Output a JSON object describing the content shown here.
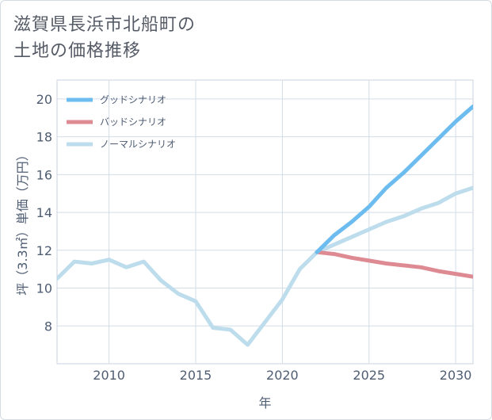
{
  "page": {
    "title_line1": "滋賀県長浜市北船町の",
    "title_line2": "土地の価格推移"
  },
  "chart_data": {
    "type": "line",
    "title": "滋賀県長浜市北船町の土地の価格推移",
    "xlabel": "年",
    "ylabel": "坪（3.3㎡）単価（万円）",
    "xlim": [
      2007,
      2031
    ],
    "ylim": [
      6,
      21
    ],
    "x_ticks": [
      2010,
      2015,
      2020,
      2025,
      2030
    ],
    "y_ticks": [
      8,
      10,
      12,
      14,
      16,
      18,
      20
    ],
    "grid": true,
    "legend_position": "top-left",
    "series": [
      {
        "name": "グッドシナリオ",
        "color": "#6cbcf0",
        "x": [
          2022,
          2023,
          2024,
          2025,
          2026,
          2027,
          2028,
          2029,
          2030,
          2031
        ],
        "values": [
          11.9,
          12.8,
          13.5,
          14.3,
          15.3,
          16.1,
          17.0,
          17.9,
          18.8,
          19.6
        ]
      },
      {
        "name": "バッドシナリオ",
        "color": "#de8a92",
        "x": [
          2022,
          2023,
          2024,
          2025,
          2026,
          2027,
          2028,
          2029,
          2030,
          2031
        ],
        "values": [
          11.9,
          11.8,
          11.6,
          11.45,
          11.3,
          11.2,
          11.1,
          10.9,
          10.75,
          10.6
        ]
      },
      {
        "name": "ノーマルシナリオ",
        "color": "#bddcec",
        "x": [
          2007,
          2008,
          2009,
          2010,
          2011,
          2012,
          2013,
          2014,
          2015,
          2016,
          2017,
          2018,
          2019,
          2020,
          2021,
          2022,
          2023,
          2024,
          2025,
          2026,
          2027,
          2028,
          2029,
          2030,
          2031
        ],
        "values": [
          10.5,
          11.4,
          11.3,
          11.5,
          11.1,
          11.4,
          10.4,
          9.7,
          9.3,
          7.9,
          7.8,
          7.0,
          8.2,
          9.4,
          11.0,
          11.9,
          12.3,
          12.7,
          13.1,
          13.5,
          13.8,
          14.2,
          14.5,
          15.0,
          15.3
        ]
      }
    ]
  }
}
